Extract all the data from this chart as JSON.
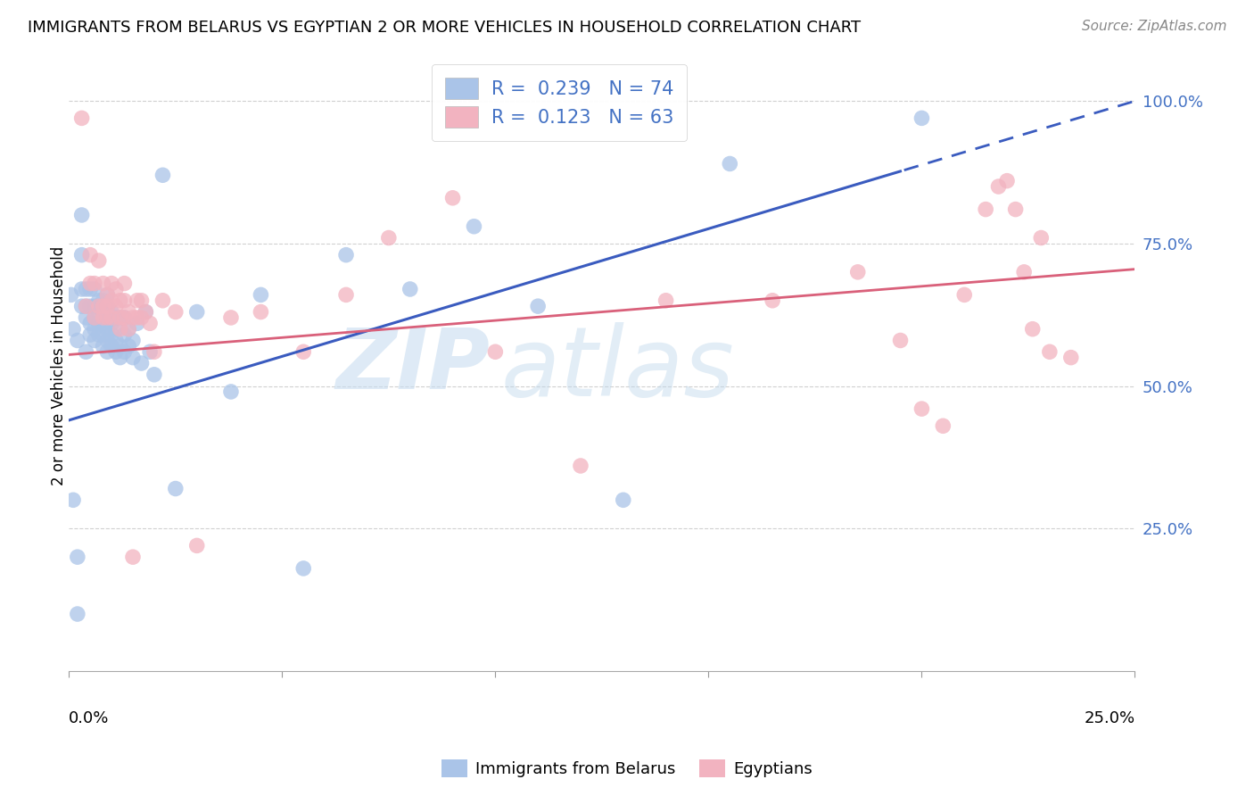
{
  "title": "IMMIGRANTS FROM BELARUS VS EGYPTIAN 2 OR MORE VEHICLES IN HOUSEHOLD CORRELATION CHART",
  "source": "Source: ZipAtlas.com",
  "ylabel": "2 or more Vehicles in Household",
  "xmin": 0.0,
  "xmax": 0.25,
  "ymin": 0.0,
  "ymax": 1.07,
  "legend_r_blue": "0.239",
  "legend_n_blue": "74",
  "legend_r_pink": "0.123",
  "legend_n_pink": "63",
  "blue_color": "#aac4e8",
  "pink_color": "#f2b3c0",
  "line_blue": "#3a5bbf",
  "line_pink": "#d9607a",
  "right_tick_color": "#4472c4",
  "grid_color": "#d0d0d0",
  "blue_x": [
    0.0005,
    0.001,
    0.001,
    0.002,
    0.002,
    0.002,
    0.003,
    0.003,
    0.003,
    0.003,
    0.004,
    0.004,
    0.004,
    0.004,
    0.005,
    0.005,
    0.005,
    0.005,
    0.006,
    0.006,
    0.006,
    0.006,
    0.006,
    0.007,
    0.007,
    0.007,
    0.007,
    0.008,
    0.008,
    0.008,
    0.008,
    0.008,
    0.009,
    0.009,
    0.009,
    0.009,
    0.009,
    0.009,
    0.01,
    0.01,
    0.01,
    0.01,
    0.011,
    0.011,
    0.011,
    0.011,
    0.012,
    0.012,
    0.012,
    0.013,
    0.013,
    0.013,
    0.014,
    0.014,
    0.015,
    0.015,
    0.016,
    0.017,
    0.018,
    0.019,
    0.02,
    0.022,
    0.025,
    0.03,
    0.038,
    0.045,
    0.055,
    0.065,
    0.08,
    0.095,
    0.11,
    0.13,
    0.155,
    0.2
  ],
  "blue_y": [
    0.66,
    0.3,
    0.6,
    0.2,
    0.1,
    0.58,
    0.64,
    0.67,
    0.73,
    0.8,
    0.56,
    0.62,
    0.64,
    0.67,
    0.59,
    0.61,
    0.64,
    0.67,
    0.58,
    0.6,
    0.62,
    0.64,
    0.67,
    0.59,
    0.61,
    0.63,
    0.65,
    0.57,
    0.59,
    0.61,
    0.63,
    0.65,
    0.56,
    0.58,
    0.6,
    0.62,
    0.64,
    0.66,
    0.57,
    0.59,
    0.61,
    0.63,
    0.56,
    0.58,
    0.6,
    0.62,
    0.55,
    0.57,
    0.62,
    0.56,
    0.59,
    0.62,
    0.57,
    0.6,
    0.55,
    0.58,
    0.61,
    0.54,
    0.63,
    0.56,
    0.52,
    0.87,
    0.32,
    0.63,
    0.49,
    0.66,
    0.18,
    0.73,
    0.67,
    0.78,
    0.64,
    0.3,
    0.89,
    0.97
  ],
  "pink_x": [
    0.003,
    0.004,
    0.005,
    0.005,
    0.006,
    0.006,
    0.007,
    0.007,
    0.008,
    0.008,
    0.008,
    0.009,
    0.009,
    0.009,
    0.01,
    0.01,
    0.01,
    0.011,
    0.011,
    0.012,
    0.012,
    0.012,
    0.013,
    0.013,
    0.013,
    0.014,
    0.014,
    0.015,
    0.015,
    0.016,
    0.016,
    0.017,
    0.017,
    0.018,
    0.019,
    0.02,
    0.022,
    0.025,
    0.03,
    0.038,
    0.045,
    0.055,
    0.065,
    0.075,
    0.09,
    0.1,
    0.12,
    0.14,
    0.165,
    0.185,
    0.195,
    0.2,
    0.205,
    0.21,
    0.215,
    0.218,
    0.22,
    0.222,
    0.224,
    0.226,
    0.228,
    0.23,
    0.235
  ],
  "pink_y": [
    0.97,
    0.64,
    0.68,
    0.73,
    0.62,
    0.68,
    0.64,
    0.72,
    0.62,
    0.64,
    0.68,
    0.62,
    0.64,
    0.66,
    0.62,
    0.65,
    0.68,
    0.64,
    0.67,
    0.6,
    0.62,
    0.65,
    0.62,
    0.65,
    0.68,
    0.6,
    0.63,
    0.62,
    0.2,
    0.62,
    0.65,
    0.62,
    0.65,
    0.63,
    0.61,
    0.56,
    0.65,
    0.63,
    0.22,
    0.62,
    0.63,
    0.56,
    0.66,
    0.76,
    0.83,
    0.56,
    0.36,
    0.65,
    0.65,
    0.7,
    0.58,
    0.46,
    0.43,
    0.66,
    0.81,
    0.85,
    0.86,
    0.81,
    0.7,
    0.6,
    0.76,
    0.56,
    0.55
  ]
}
